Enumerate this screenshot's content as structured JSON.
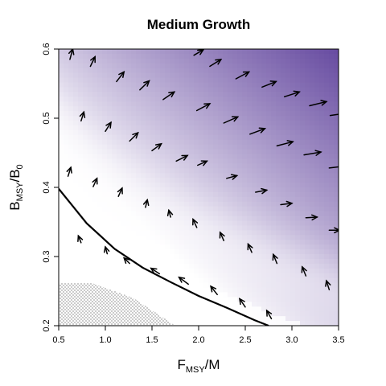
{
  "chart_data": {
    "type": "heatmap",
    "title": "Medium Growth",
    "xlabel": {
      "main": "F",
      "sub": "MSY",
      "suffix": "/M"
    },
    "ylabel": {
      "main": "B",
      "sub": "MSY",
      "suffix": "/B",
      "sub2": "0"
    },
    "xlim": [
      0.5,
      3.5
    ],
    "ylim": [
      0.2,
      0.6
    ],
    "xticks": [
      "0.5",
      "1.0",
      "1.5",
      "2.0",
      "2.5",
      "3.0",
      "3.5"
    ],
    "yticks": [
      "0.2",
      "0.3",
      "0.4",
      "0.5",
      "0.6"
    ],
    "colors": {
      "low": "#ffffff",
      "high": "#4b2a8f",
      "curve": "#000000",
      "arrow": "#000000"
    },
    "curve": {
      "x": [
        0.5,
        0.8,
        1.1,
        1.4,
        1.7,
        2.0,
        2.3,
        2.6,
        2.75
      ],
      "y": [
        0.398,
        0.348,
        0.311,
        0.284,
        0.263,
        0.243,
        0.226,
        0.208,
        0.2
      ]
    },
    "stippled_region": {
      "x": [
        0.5,
        0.5,
        0.85,
        1.3,
        1.75,
        0.5
      ],
      "y": [
        0.2,
        0.262,
        0.262,
        0.24,
        0.2,
        0.2
      ]
    },
    "arrows": [
      {
        "x": 0.62,
        "y": 0.585,
        "dx": 0.03,
        "dy": 0.015
      },
      {
        "x": 0.84,
        "y": 0.575,
        "dx": 0.05,
        "dy": 0.014
      },
      {
        "x": 1.12,
        "y": 0.553,
        "dx": 0.08,
        "dy": 0.014
      },
      {
        "x": 1.37,
        "y": 0.541,
        "dx": 0.1,
        "dy": 0.013
      },
      {
        "x": 1.62,
        "y": 0.527,
        "dx": 0.12,
        "dy": 0.011
      },
      {
        "x": 1.95,
        "y": 0.591,
        "dx": 0.1,
        "dy": 0.008
      },
      {
        "x": 2.12,
        "y": 0.575,
        "dx": 0.12,
        "dy": 0.01
      },
      {
        "x": 2.4,
        "y": 0.557,
        "dx": 0.14,
        "dy": 0.01
      },
      {
        "x": 2.68,
        "y": 0.545,
        "dx": 0.15,
        "dy": 0.008
      },
      {
        "x": 2.92,
        "y": 0.531,
        "dx": 0.16,
        "dy": 0.007
      },
      {
        "x": 3.19,
        "y": 0.518,
        "dx": 0.18,
        "dy": 0.006
      },
      {
        "x": 3.41,
        "y": 0.504,
        "dx": 0.16,
        "dy": 0.003
      },
      {
        "x": 0.74,
        "y": 0.496,
        "dx": 0.03,
        "dy": 0.013
      },
      {
        "x": 1.0,
        "y": 0.481,
        "dx": 0.06,
        "dy": 0.013
      },
      {
        "x": 1.26,
        "y": 0.467,
        "dx": 0.09,
        "dy": 0.012
      },
      {
        "x": 1.5,
        "y": 0.453,
        "dx": 0.1,
        "dy": 0.01
      },
      {
        "x": 1.76,
        "y": 0.438,
        "dx": 0.12,
        "dy": 0.008
      },
      {
        "x": 1.98,
        "y": 0.511,
        "dx": 0.14,
        "dy": 0.01
      },
      {
        "x": 2.27,
        "y": 0.493,
        "dx": 0.15,
        "dy": 0.009
      },
      {
        "x": 2.55,
        "y": 0.477,
        "dx": 0.16,
        "dy": 0.008
      },
      {
        "x": 2.84,
        "y": 0.46,
        "dx": 0.17,
        "dy": 0.006
      },
      {
        "x": 3.13,
        "y": 0.447,
        "dx": 0.18,
        "dy": 0.004
      },
      {
        "x": 3.4,
        "y": 0.428,
        "dx": 0.18,
        "dy": 0.003
      },
      {
        "x": 0.6,
        "y": 0.416,
        "dx": 0.03,
        "dy": 0.013
      },
      {
        "x": 0.87,
        "y": 0.401,
        "dx": 0.04,
        "dy": 0.012
      },
      {
        "x": 1.14,
        "y": 0.387,
        "dx": 0.04,
        "dy": 0.012
      },
      {
        "x": 1.43,
        "y": 0.371,
        "dx": 0.02,
        "dy": 0.011
      },
      {
        "x": 1.7,
        "y": 0.357,
        "dx": -0.02,
        "dy": 0.01
      },
      {
        "x": 1.99,
        "y": 0.432,
        "dx": 0.1,
        "dy": 0.006
      },
      {
        "x": 2.3,
        "y": 0.413,
        "dx": 0.11,
        "dy": 0.004
      },
      {
        "x": 2.61,
        "y": 0.393,
        "dx": 0.12,
        "dy": 0.003
      },
      {
        "x": 2.88,
        "y": 0.375,
        "dx": 0.12,
        "dy": 0.002
      },
      {
        "x": 3.15,
        "y": 0.356,
        "dx": 0.12,
        "dy": 0.001
      },
      {
        "x": 3.4,
        "y": 0.338,
        "dx": 0.11,
        "dy": 0.0
      },
      {
        "x": 0.74,
        "y": 0.32,
        "dx": -0.03,
        "dy": 0.01
      },
      {
        "x": 1.02,
        "y": 0.304,
        "dx": -0.02,
        "dy": 0.01
      },
      {
        "x": 1.26,
        "y": 0.29,
        "dx": -0.06,
        "dy": 0.008
      },
      {
        "x": 1.58,
        "y": 0.275,
        "dx": -0.09,
        "dy": 0.008
      },
      {
        "x": 1.98,
        "y": 0.342,
        "dx": -0.04,
        "dy": 0.012
      },
      {
        "x": 2.27,
        "y": 0.323,
        "dx": -0.04,
        "dy": 0.012
      },
      {
        "x": 2.57,
        "y": 0.306,
        "dx": -0.04,
        "dy": 0.012
      },
      {
        "x": 2.84,
        "y": 0.29,
        "dx": -0.04,
        "dy": 0.013
      },
      {
        "x": 3.15,
        "y": 0.272,
        "dx": -0.04,
        "dy": 0.013
      },
      {
        "x": 3.4,
        "y": 0.252,
        "dx": -0.03,
        "dy": 0.013
      },
      {
        "x": 1.89,
        "y": 0.26,
        "dx": -0.1,
        "dy": 0.01
      },
      {
        "x": 2.2,
        "y": 0.245,
        "dx": -0.07,
        "dy": 0.012
      },
      {
        "x": 2.5,
        "y": 0.227,
        "dx": -0.06,
        "dy": 0.012
      },
      {
        "x": 2.78,
        "y": 0.21,
        "dx": -0.05,
        "dy": 0.012
      }
    ]
  }
}
